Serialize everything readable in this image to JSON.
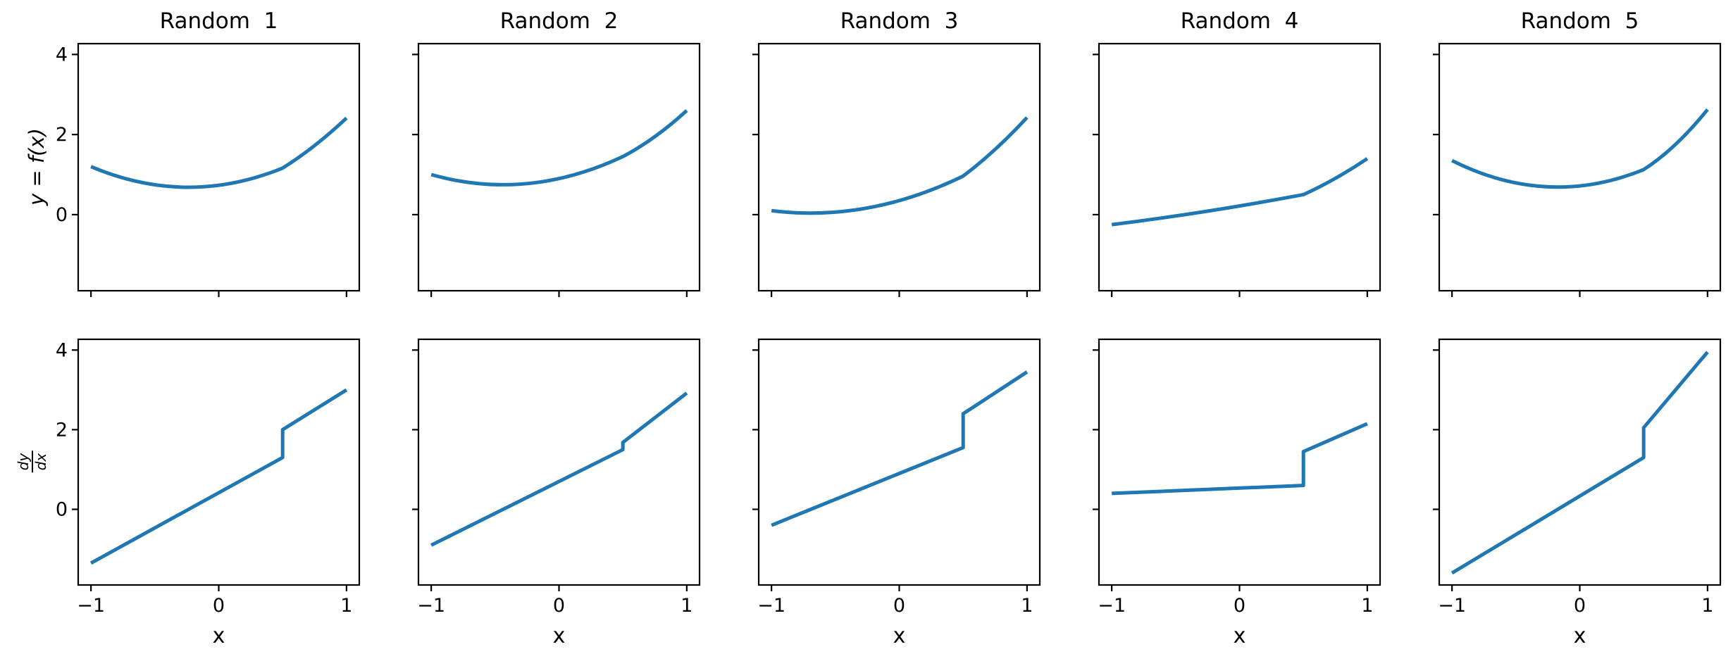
{
  "chart_data": {
    "type": "line",
    "layout": "grid of 2 rows x 5 columns, shared axes; top row function, bottom row derivative",
    "xlabel": "x",
    "ylabel_top": "y = f(x)",
    "ylabel_bottom": {
      "numerator": "dy",
      "denominator": "dx"
    },
    "xlim": [
      -1.1,
      1.1
    ],
    "ylim": [
      -1.9,
      4.27
    ],
    "xticks": [
      -1,
      0,
      1
    ],
    "xtick_labels": [
      "−1",
      "0",
      "1"
    ],
    "yticks": [
      0,
      2,
      4
    ],
    "ytick_labels": [
      "0",
      "2",
      "4"
    ],
    "grid": false,
    "legend": null,
    "line_color": "#1f77b4",
    "line_width": 5,
    "columns": [
      {
        "title": "Random  1",
        "f": {
          "x": [
            -1,
            0.5,
            1
          ],
          "y": [
            1.2,
            1.1625,
            2.4125
          ],
          "bezier_controls": [
            [
              -0.25,
              0.1875
            ],
            [
              0.75,
              1.6625
            ]
          ]
        },
        "dydx": {
          "x": [
            -1,
            0.5,
            0.5,
            1
          ],
          "y": [
            -1.35,
            1.3,
            2.0,
            3.0
          ]
        }
      },
      {
        "title": "Random  2",
        "f": {
          "x": [
            -1,
            0.5,
            1
          ],
          "y": [
            1.0,
            1.45,
            2.6
          ],
          "bezier_controls": [
            [
              -0.25,
              0.325
            ],
            [
              0.75,
              1.87
            ]
          ]
        },
        "dydx": {
          "x": [
            -1,
            0.5,
            0.5,
            1
          ],
          "y": [
            -0.9,
            1.5,
            1.68,
            2.92
          ]
        }
      },
      {
        "title": "Random  3",
        "f": {
          "x": [
            -1,
            0.5,
            1
          ],
          "y": [
            0.1,
            0.9625,
            2.425
          ],
          "bezier_controls": [
            [
              -0.25,
              -0.2
            ],
            [
              0.75,
              1.5625
            ]
          ]
        },
        "dydx": {
          "x": [
            -1,
            0.5,
            0.5,
            1
          ],
          "y": [
            -0.4,
            1.55,
            2.4,
            3.45
          ]
        }
      },
      {
        "title": "Random  4",
        "f": {
          "x": [
            -1,
            0.5,
            1
          ],
          "y": [
            -0.25,
            0.5,
            1.4
          ],
          "bezier_controls": [
            [
              -0.25,
              0.05
            ],
            [
              0.75,
              0.8625
            ]
          ]
        },
        "dydx": {
          "x": [
            -1,
            0.5,
            0.5,
            1
          ],
          "y": [
            0.4,
            0.6,
            1.45,
            2.15
          ]
        }
      },
      {
        "title": "Random  5",
        "f": {
          "x": [
            -1,
            0.5,
            1
          ],
          "y": [
            1.35,
            1.125,
            2.625
          ],
          "bezier_controls": [
            [
              -0.25,
              0.15
            ],
            [
              0.75,
              1.6375
            ]
          ]
        },
        "dydx": {
          "x": [
            -1,
            0.5,
            0.5,
            1
          ],
          "y": [
            -1.6,
            1.3,
            2.05,
            3.95
          ]
        }
      }
    ]
  }
}
